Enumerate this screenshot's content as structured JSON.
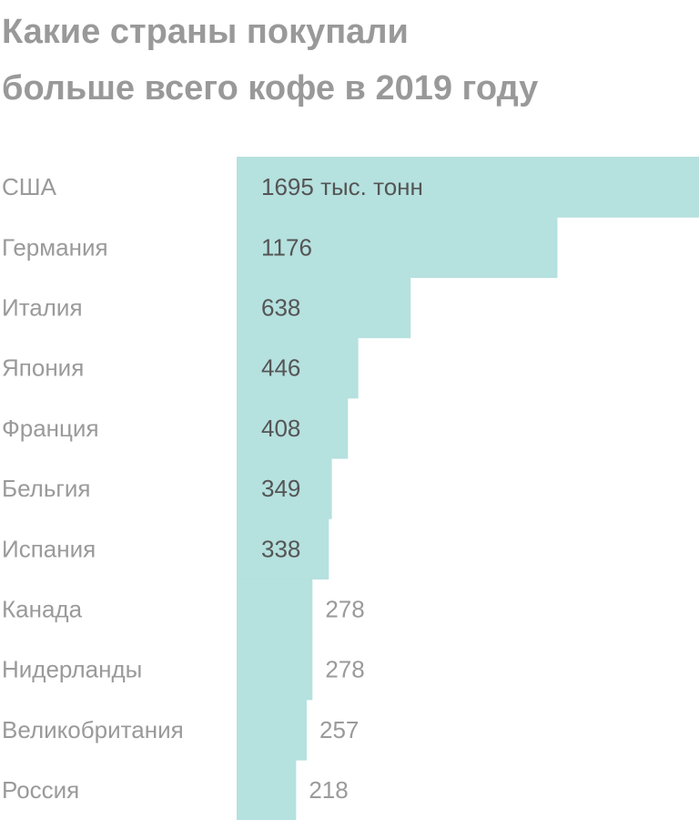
{
  "title_lines": [
    "Какие страны покупали",
    "больше всего кофе в 2019 году"
  ],
  "colors": {
    "bar": "#b5e1df",
    "title": "#999999",
    "category_label": "#9a9a9a",
    "value_inside": "#555555",
    "value_outside": "#9a9a9a"
  },
  "chart_data": {
    "type": "bar",
    "orientation": "horizontal",
    "categories": [
      "США",
      "Германия",
      "Италия",
      "Япония",
      "Франция",
      "Бельгия",
      "Испания",
      "Канада",
      "Нидерланды",
      "Великобритания",
      "Россия"
    ],
    "values": [
      1695,
      1176,
      638,
      446,
      408,
      349,
      338,
      278,
      278,
      257,
      218
    ],
    "value_labels": [
      "1695 тыс. тонн",
      "1176",
      "638",
      "446",
      "408",
      "349",
      "338",
      "278",
      "278",
      "257",
      "218"
    ],
    "title": "Какие страны покупали больше всего кофе в 2019 году",
    "xlabel": "",
    "ylabel": "",
    "grid": false,
    "legend": "none"
  }
}
